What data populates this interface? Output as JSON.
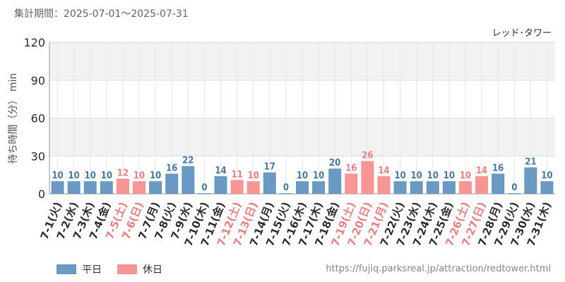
{
  "header": {
    "period_label": "集計期間：2025-07-01～2025-07-31",
    "attraction_name": "レッド･タワー"
  },
  "footer": {
    "url": "https://fujiq.parksreal.jp/attraction/redtower.html"
  },
  "colors": {
    "weekday": "#6a9ac4",
    "holiday": "#f79595",
    "weekday_label": "#4a7aa6",
    "holiday_label": "#f08080",
    "axis_text": "#333333",
    "band": "#f2f2f2"
  },
  "chart_data": {
    "type": "bar",
    "title": "",
    "xlabel": "",
    "ylabel": "待ち時間（分） min",
    "ylim": [
      0,
      120
    ],
    "yticks": [
      0,
      30,
      60,
      90,
      120
    ],
    "grid": true,
    "legend_position": "bottom-left",
    "categories": [
      "7-1(火)",
      "7-2(水)",
      "7-3(木)",
      "7-4(金)",
      "7-5(土)",
      "7-6(日)",
      "7-7(月)",
      "7-8(火)",
      "7-9(水)",
      "7-10(木)",
      "7-11(金)",
      "7-12(土)",
      "7-13(日)",
      "7-14(月)",
      "7-15(火)",
      "7-16(木)",
      "7-17(木)",
      "7-18(金)",
      "7-19(土)",
      "7-20(日)",
      "7-21(月)",
      "7-22(火)",
      "7-23(水)",
      "7-24(木)",
      "7-25(金)",
      "7-26(土)",
      "7-27(日)",
      "7-28(月)",
      "7-29(火)",
      "7-30(水)",
      "7-31(木)"
    ],
    "values": [
      10,
      10,
      10,
      10,
      12,
      10,
      10,
      16,
      22,
      0,
      14,
      11,
      10,
      17,
      0,
      10,
      10,
      20,
      16,
      26,
      14,
      10,
      10,
      10,
      10,
      10,
      14,
      16,
      0,
      21,
      10
    ],
    "holiday": [
      false,
      false,
      false,
      false,
      true,
      true,
      false,
      false,
      false,
      false,
      false,
      true,
      true,
      false,
      false,
      false,
      false,
      false,
      true,
      true,
      true,
      false,
      false,
      false,
      false,
      true,
      true,
      false,
      false,
      false,
      false
    ],
    "series": [
      {
        "name": "平日",
        "color": "#6a9ac4"
      },
      {
        "name": "休日",
        "color": "#f79595"
      }
    ]
  }
}
